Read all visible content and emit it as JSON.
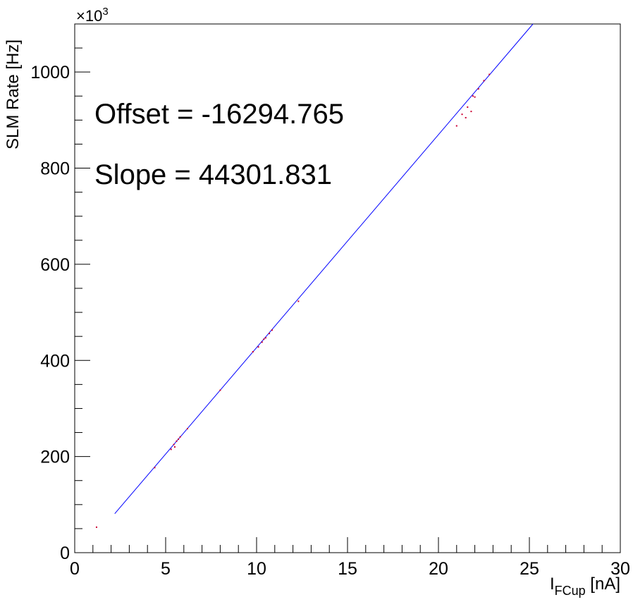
{
  "chart_data": {
    "type": "scatter",
    "title": "",
    "xlabel": {
      "main": "I",
      "sub": "FCup",
      "unit": " [nA]"
    },
    "ylabel": "SLM Rate [Hz]",
    "xlim": [
      0,
      30
    ],
    "ylim": [
      0,
      1100000
    ],
    "y_multiplier": {
      "base": "×10",
      "exp": "3"
    },
    "x_ticks": [
      0,
      5,
      10,
      15,
      20,
      25,
      30
    ],
    "x_tick_labels": [
      "0",
      "5",
      "10",
      "15",
      "20",
      "25",
      "30"
    ],
    "y_ticks": [
      0,
      200000,
      400000,
      600000,
      800000,
      1000000
    ],
    "y_tick_labels": [
      "0",
      "200",
      "400",
      "600",
      "800",
      "1000"
    ],
    "grid": false,
    "annotations": [
      "Offset = -16294.765",
      "Slope = 44301.831"
    ],
    "fit_line": {
      "color": "#0000ff",
      "offset": -16294.765,
      "slope": 44301.831,
      "x_range": [
        2.2,
        25.2
      ]
    },
    "data_color": "#cc0033",
    "data_points": [
      {
        "x": 1.2,
        "y": 53000
      },
      {
        "x": 4.4,
        "y": 177000
      },
      {
        "x": 5.3,
        "y": 215000
      },
      {
        "x": 5.45,
        "y": 225000
      },
      {
        "x": 5.6,
        "y": 232000
      },
      {
        "x": 5.7,
        "y": 236000
      },
      {
        "x": 5.8,
        "y": 241000
      },
      {
        "x": 5.5,
        "y": 220000
      },
      {
        "x": 6.2,
        "y": 258000
      },
      {
        "x": 8.0,
        "y": 338000
      },
      {
        "x": 9.8,
        "y": 418000
      },
      {
        "x": 10.1,
        "y": 428000
      },
      {
        "x": 10.3,
        "y": 438000
      },
      {
        "x": 10.5,
        "y": 447000
      },
      {
        "x": 10.7,
        "y": 456000
      },
      {
        "x": 10.85,
        "y": 463000
      },
      {
        "x": 10.4,
        "y": 444000
      },
      {
        "x": 12.3,
        "y": 523000
      },
      {
        "x": 21.0,
        "y": 888000
      },
      {
        "x": 21.3,
        "y": 912000
      },
      {
        "x": 21.6,
        "y": 927000
      },
      {
        "x": 21.9,
        "y": 950000
      },
      {
        "x": 22.2,
        "y": 965000
      },
      {
        "x": 22.5,
        "y": 982000
      },
      {
        "x": 22.8,
        "y": 995000
      },
      {
        "x": 21.5,
        "y": 905000
      },
      {
        "x": 21.8,
        "y": 918000
      },
      {
        "x": 22.0,
        "y": 948000
      }
    ]
  }
}
